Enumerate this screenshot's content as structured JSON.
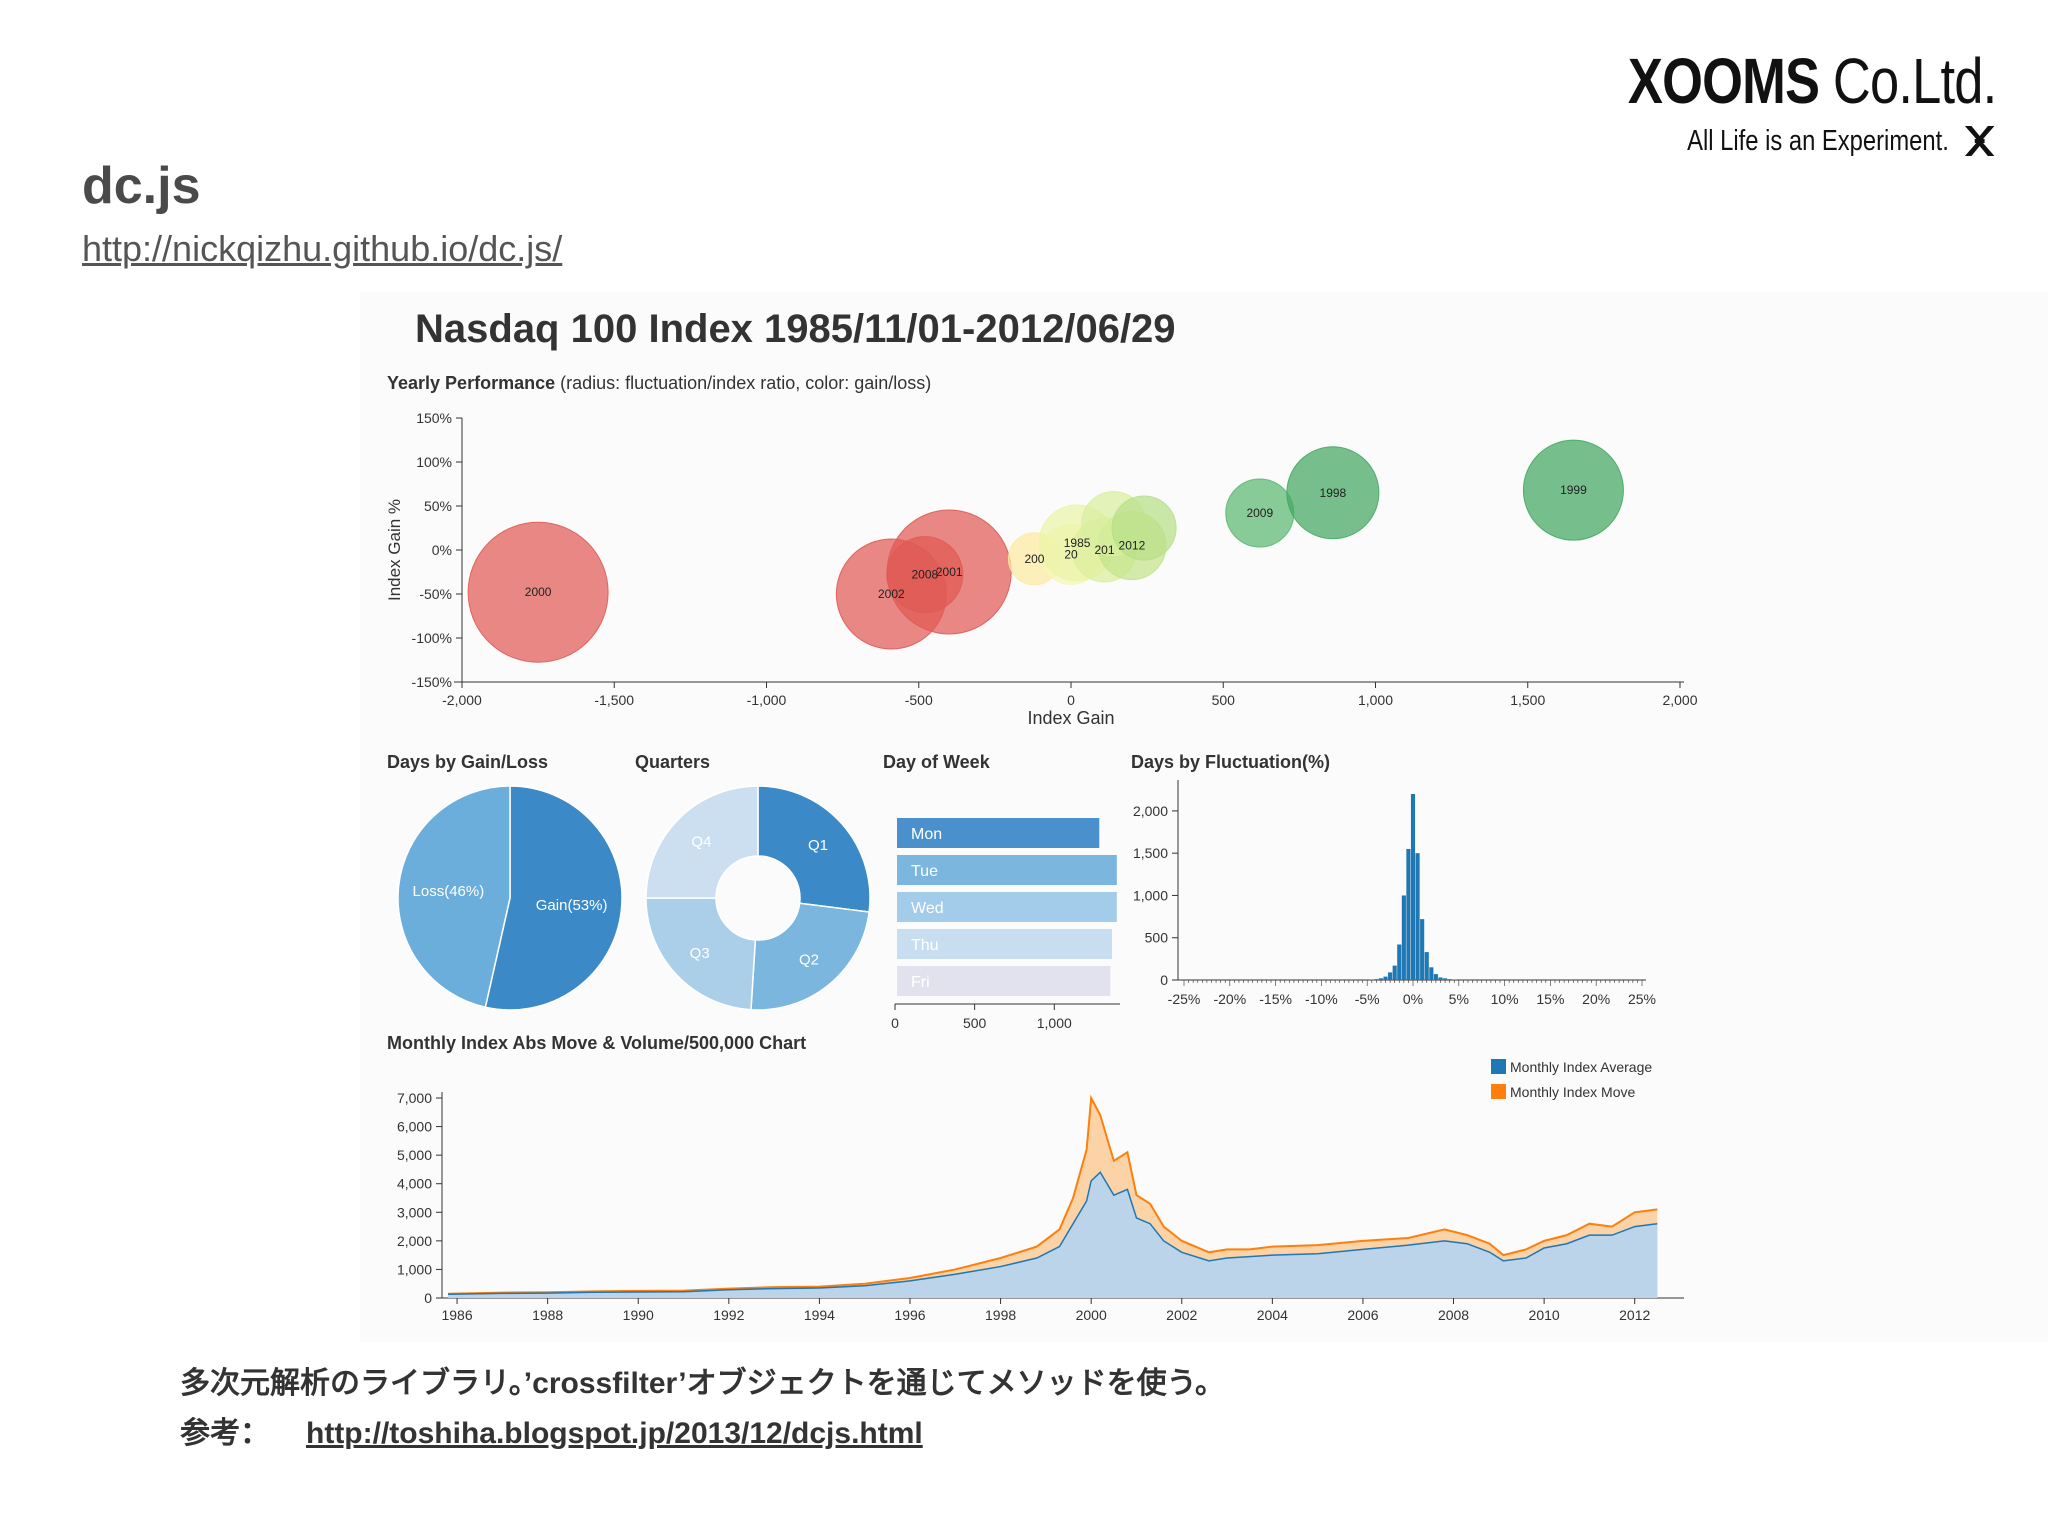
{
  "slide": {
    "title": "dc.js",
    "link": "http://nickqizhu.github.io/dc.js/",
    "logo_name_bold": "XOOMS",
    "logo_name_rest": " Co.Ltd.",
    "logo_tagline": "All Life is an Experiment.",
    "footer_line1": "多次元解析のライブラリ。’crossfilter’オブジェクトを通じてメソッドを使う。",
    "footer_ref_label": "参考：",
    "footer_ref_link": "http://toshiha.blogspot.jp/2013/12/dcjs.html"
  },
  "dashboard_title": "Nasdaq 100 Index 1985/11/01-2012/06/29",
  "chart_data": [
    {
      "type": "scatter",
      "title": "Yearly Performance",
      "subtitle": "(radius: fluctuation/index ratio, color: gain/loss)",
      "xlabel": "Index Gain",
      "ylabel": "Index Gain %",
      "xlim": [
        -2000,
        2000
      ],
      "ylim": [
        -150,
        150
      ],
      "xticks": [
        "-2,000",
        "-1,500",
        "-1,000",
        "-500",
        "0",
        "500",
        "1,000",
        "1,500",
        "2,000"
      ],
      "yticks": [
        "150%",
        "100%",
        "50%",
        "0%",
        "-50%",
        "-100%",
        "-150%"
      ],
      "points": [
        {
          "label": "2000",
          "x": -1750,
          "y": -48,
          "r": 70,
          "color": "#e05a55"
        },
        {
          "label": "2002",
          "x": -590,
          "y": -50,
          "r": 55,
          "color": "#e05a55"
        },
        {
          "label": "2001",
          "x": -400,
          "y": -25,
          "r": 62,
          "color": "#e05a55"
        },
        {
          "label": "2008",
          "x": -480,
          "y": -28,
          "r": 38,
          "color": "#e05a55"
        },
        {
          "label": "200",
          "x": -120,
          "y": -10,
          "r": 26,
          "color": "#fdeaa0"
        },
        {
          "label": "20",
          "x": 0,
          "y": -5,
          "r": 30,
          "color": "#f4f7b6"
        },
        {
          "label": "1985",
          "x": 20,
          "y": 8,
          "r": 38,
          "color": "#eaf4a8"
        },
        {
          "label": "201",
          "x": 110,
          "y": 0,
          "r": 32,
          "color": "#dcef9c"
        },
        {
          "label": "2012",
          "x": 200,
          "y": 5,
          "r": 34,
          "color": "#c3e38a"
        },
        {
          "label": "",
          "x": 140,
          "y": 30,
          "r": 32,
          "color": "#d8eea0"
        },
        {
          "label": "",
          "x": 240,
          "y": 25,
          "r": 32,
          "color": "#b9df88"
        },
        {
          "label": "2009",
          "x": 620,
          "y": 42,
          "r": 34,
          "color": "#5bb772"
        },
        {
          "label": "1998",
          "x": 860,
          "y": 65,
          "r": 46,
          "color": "#43a862"
        },
        {
          "label": "1999",
          "x": 1650,
          "y": 68,
          "r": 50,
          "color": "#43a862"
        }
      ]
    },
    {
      "type": "pie",
      "title": "Days by Gain/Loss",
      "slices": [
        {
          "label": "Gain(53%)",
          "value": 53,
          "color": "#3b89c6"
        },
        {
          "label": "Loss(46%)",
          "value": 46,
          "color": "#6baedb"
        }
      ]
    },
    {
      "type": "pie",
      "title": "Quarters",
      "donut": true,
      "slices": [
        {
          "label": "Q1",
          "value": 27,
          "color": "#3b89c6"
        },
        {
          "label": "Q2",
          "value": 24,
          "color": "#7bb6df"
        },
        {
          "label": "Q3",
          "value": 24,
          "color": "#abcfe9"
        },
        {
          "label": "Q4",
          "value": 25,
          "color": "#ccdff0"
        }
      ]
    },
    {
      "type": "bar",
      "orientation": "horizontal",
      "title": "Day of Week",
      "categories": [
        "Mon",
        "Tue",
        "Wed",
        "Thu",
        "Fri"
      ],
      "values": [
        1270,
        1380,
        1380,
        1350,
        1340
      ],
      "colors": [
        "#4a90cc",
        "#7bb6df",
        "#a3cbea",
        "#c8def0",
        "#e2e2ee"
      ],
      "xlim": [
        0,
        1400
      ],
      "xticks": [
        "0",
        "500",
        "1,000"
      ],
      "xtick_values": [
        0,
        500,
        1000
      ]
    },
    {
      "type": "bar",
      "title": "Days by Fluctuation(%)",
      "x": [
        -4.5,
        -4,
        -3.5,
        -3,
        -2.5,
        -2,
        -1.5,
        -1,
        -0.5,
        0,
        0.5,
        1,
        1.5,
        2,
        2.5,
        3,
        3.5,
        4,
        4.5
      ],
      "values": [
        5,
        10,
        20,
        40,
        90,
        170,
        420,
        1000,
        1550,
        2200,
        1500,
        720,
        330,
        150,
        70,
        30,
        20,
        10,
        5
      ],
      "color": "#1f77b4",
      "xlim": [
        -25,
        25
      ],
      "ylim": [
        0,
        2200
      ],
      "xticks": [
        "-25%",
        "-20%",
        "-15%",
        "-10%",
        "-5%",
        "0%",
        "5%",
        "10%",
        "15%",
        "20%",
        "25%"
      ],
      "yticks": [
        "0",
        "500",
        "1,000",
        "1,500",
        "2,000"
      ]
    },
    {
      "type": "area",
      "title": "Monthly Index Abs Move & Volume/500,000 Chart",
      "ylim": [
        0,
        7000
      ],
      "xlim": [
        1985.8,
        2013
      ],
      "yticks": [
        "0",
        "1,000",
        "2,000",
        "3,000",
        "4,000",
        "5,000",
        "6,000",
        "7,000"
      ],
      "xticks": [
        "1986",
        "1988",
        "1990",
        "1992",
        "1994",
        "1996",
        "1998",
        "2000",
        "2002",
        "2004",
        "2006",
        "2008",
        "2010",
        "2012"
      ],
      "legend": "top-right",
      "series": [
        {
          "name": "Monthly Index Average",
          "color": "#1f77b4",
          "x": [
            1985.8,
            1987,
            1988,
            1989,
            1990,
            1991,
            1992,
            1993,
            1994,
            1995,
            1996,
            1997,
            1998,
            1998.8,
            1999.3,
            1999.6,
            1999.9,
            2000.0,
            2000.2,
            2000.5,
            2000.8,
            2001.0,
            2001.3,
            2001.6,
            2002.0,
            2002.6,
            2003.0,
            2003.5,
            2004.0,
            2005.0,
            2006.0,
            2007.0,
            2007.8,
            2008.3,
            2008.8,
            2009.1,
            2009.6,
            2010.0,
            2010.5,
            2011.0,
            2011.5,
            2012.0,
            2012.5
          ],
          "values": [
            130,
            160,
            170,
            200,
            210,
            220,
            290,
            330,
            350,
            430,
            600,
            830,
            1100,
            1400,
            1800,
            2600,
            3400,
            4100,
            4400,
            3600,
            3800,
            2800,
            2600,
            2000,
            1600,
            1300,
            1400,
            1450,
            1500,
            1550,
            1700,
            1850,
            2000,
            1900,
            1600,
            1300,
            1400,
            1750,
            1900,
            2200,
            2200,
            2500,
            2600
          ]
        },
        {
          "name": "Monthly Index Move",
          "color": "#ff7f0e",
          "x": [
            1985.8,
            1987,
            1988,
            1989,
            1990,
            1991,
            1992,
            1993,
            1994,
            1995,
            1996,
            1997,
            1998,
            1998.8,
            1999.3,
            1999.6,
            1999.9,
            2000.0,
            2000.2,
            2000.5,
            2000.8,
            2001.0,
            2001.3,
            2001.6,
            2002.0,
            2002.6,
            2003.0,
            2003.5,
            2004.0,
            2005.0,
            2006.0,
            2007.0,
            2007.8,
            2008.3,
            2008.8,
            2009.1,
            2009.6,
            2010.0,
            2010.5,
            2011.0,
            2011.5,
            2012.0,
            2012.5
          ],
          "values": [
            150,
            190,
            200,
            230,
            250,
            260,
            330,
            380,
            400,
            500,
            700,
            1000,
            1400,
            1800,
            2400,
            3500,
            5200,
            7000,
            6400,
            4800,
            5100,
            3600,
            3300,
            2500,
            2000,
            1600,
            1700,
            1700,
            1800,
            1850,
            2000,
            2100,
            2400,
            2200,
            1900,
            1500,
            1700,
            2000,
            2200,
            2600,
            2500,
            3000,
            3100
          ]
        }
      ]
    }
  ]
}
